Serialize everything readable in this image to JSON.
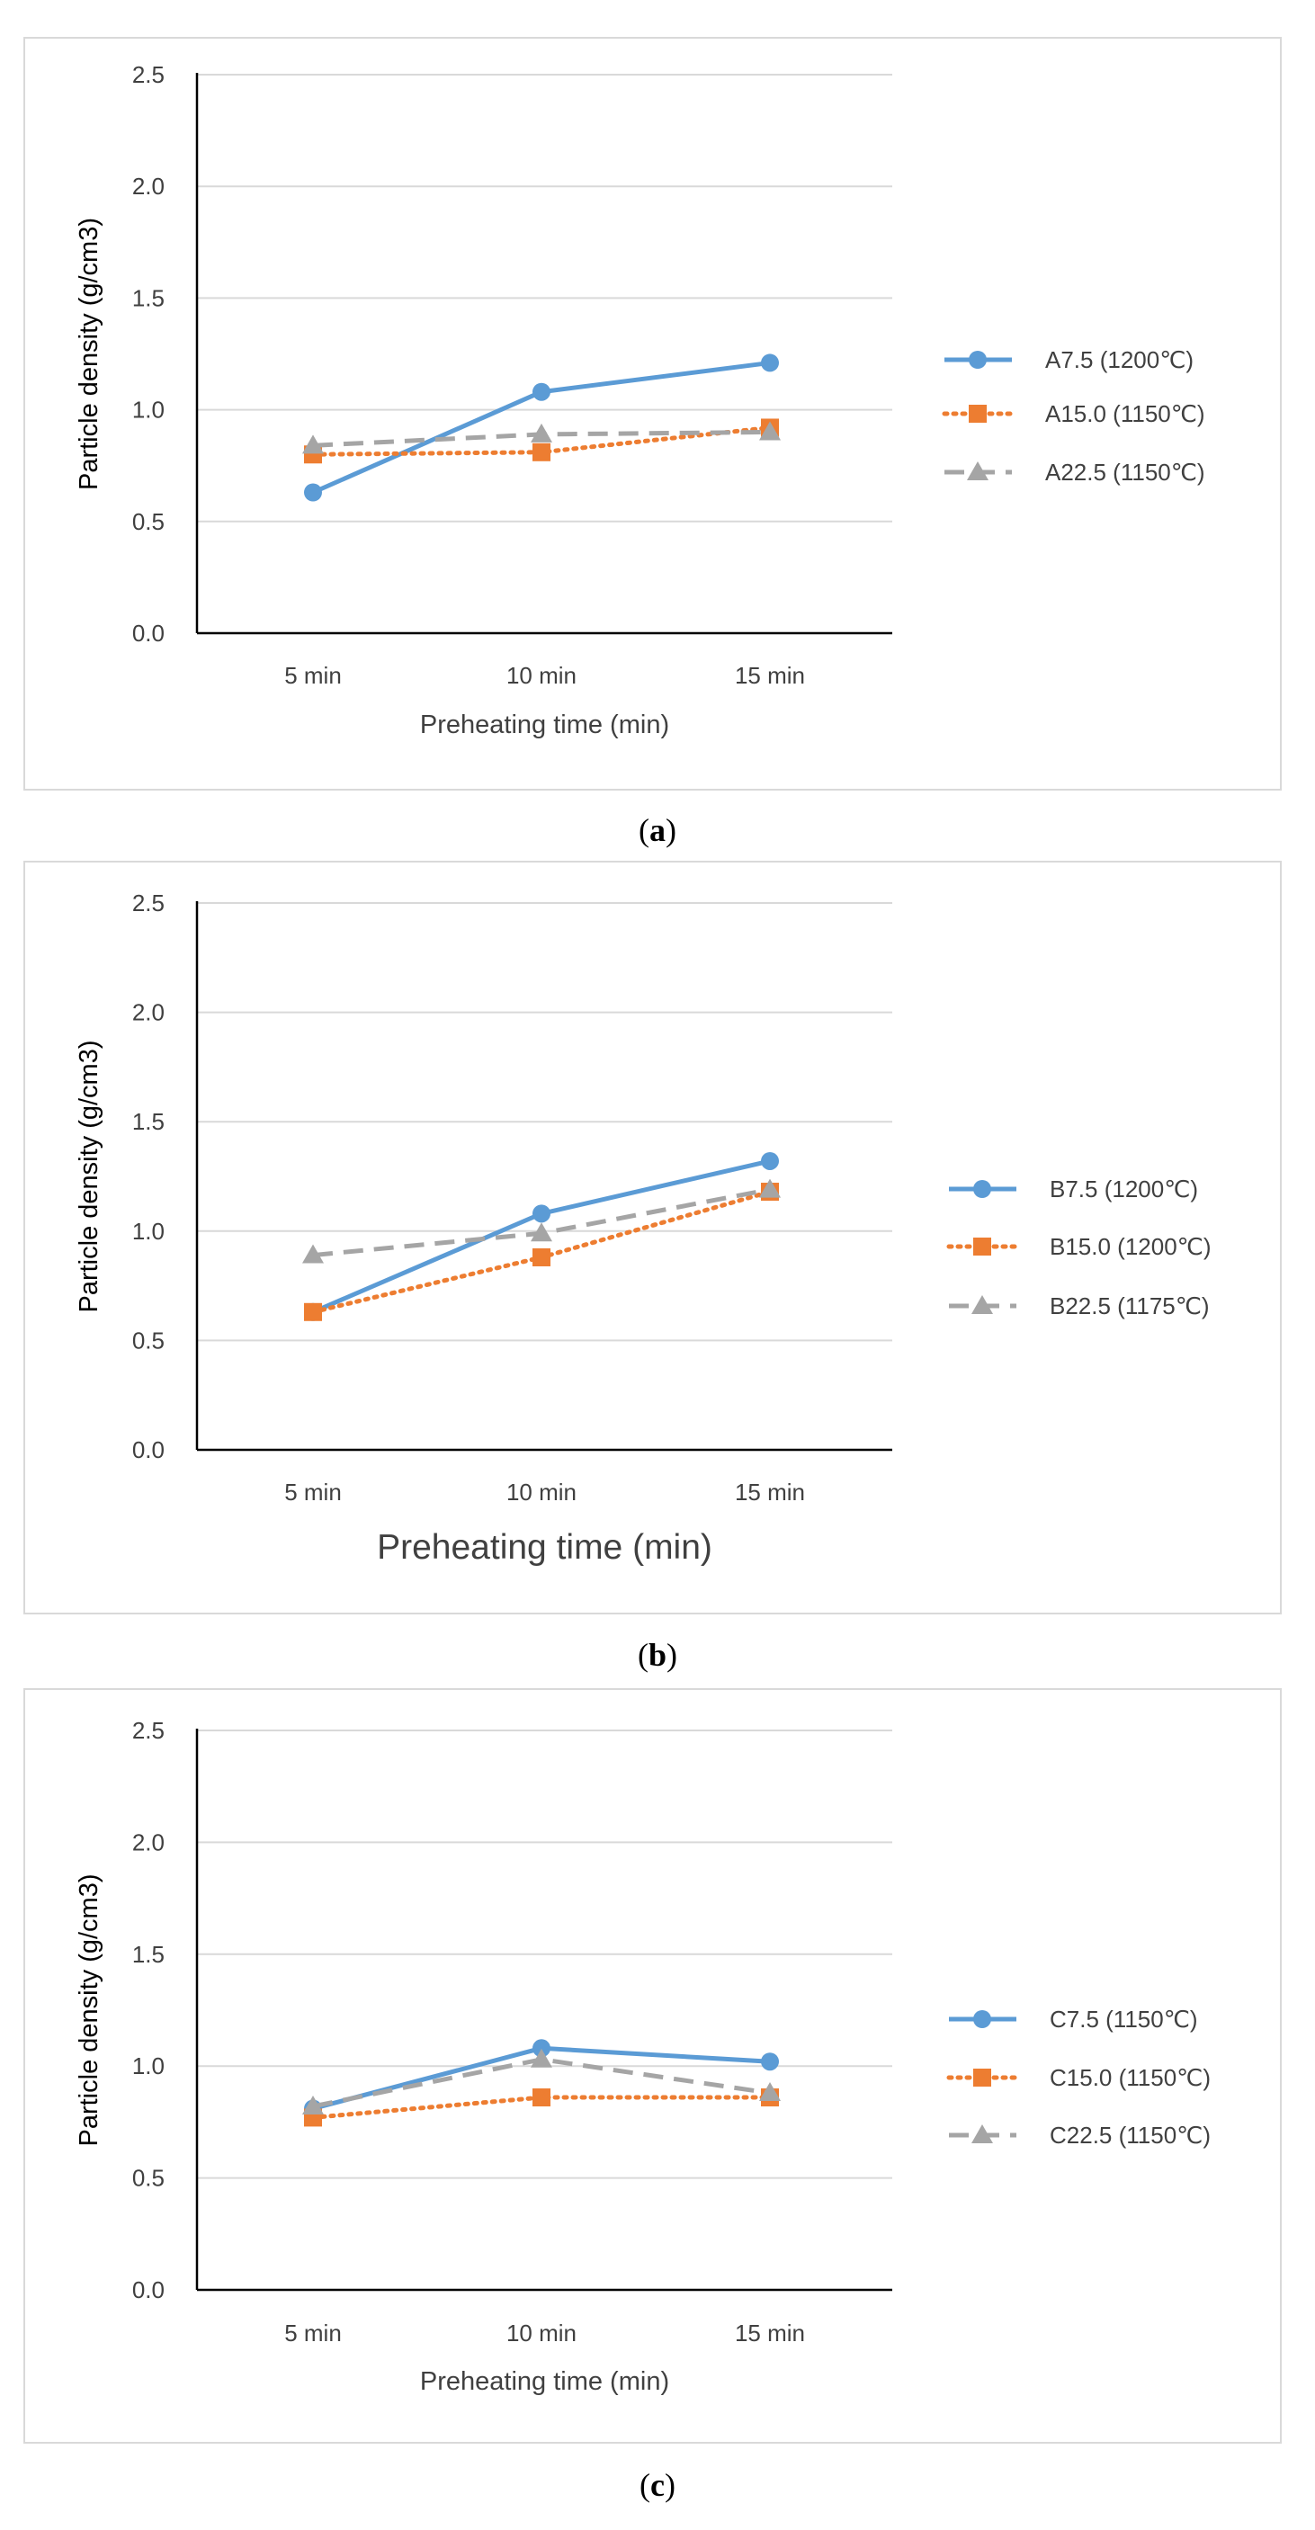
{
  "chart_data": [
    {
      "type": "line",
      "panel": "a",
      "caption": "(a)",
      "caption_letter": "a",
      "categories": [
        "5 min",
        "10 min",
        "15 min"
      ],
      "xlabel": "Preheating time (min)",
      "ylabel": "Particle density (g/cm3)",
      "ylim": [
        0,
        2.5
      ],
      "yticks": [
        "0.0",
        "0.5",
        "1.0",
        "1.5",
        "2.0",
        "2.5"
      ],
      "grid": true,
      "legend_position": "right",
      "series": [
        {
          "name": "A7.5 (1200℃)",
          "values": [
            0.63,
            1.08,
            1.21
          ],
          "color": "#5B9BD5",
          "style": "solid",
          "marker": "circle"
        },
        {
          "name": "A15.0 (1150℃)",
          "values": [
            0.8,
            0.81,
            0.92
          ],
          "color": "#ED7D31",
          "style": "dotted",
          "marker": "square"
        },
        {
          "name": "A22.5 (1150℃)",
          "values": [
            0.84,
            0.89,
            0.9
          ],
          "color": "#A5A5A5",
          "style": "dashed",
          "marker": "triangle"
        }
      ]
    },
    {
      "type": "line",
      "panel": "b",
      "caption": "(b)",
      "caption_letter": "b",
      "categories": [
        "5 min",
        "10 min",
        "15 min"
      ],
      "xlabel": "Preheating time (min)",
      "ylabel": "Particle density (g/cm3)",
      "ylim": [
        0,
        2.5
      ],
      "yticks": [
        "0.0",
        "0.5",
        "1.0",
        "1.5",
        "2.0",
        "2.5"
      ],
      "grid": true,
      "legend_position": "right",
      "series": [
        {
          "name": "B7.5 (1200℃)",
          "values": [
            0.63,
            1.08,
            1.32
          ],
          "color": "#5B9BD5",
          "style": "solid",
          "marker": "circle"
        },
        {
          "name": "B15.0 (1200℃)",
          "values": [
            0.63,
            0.88,
            1.18
          ],
          "color": "#ED7D31",
          "style": "dotted",
          "marker": "square"
        },
        {
          "name": "B22.5 (1175℃)",
          "values": [
            0.89,
            0.99,
            1.19
          ],
          "color": "#A5A5A5",
          "style": "dashed",
          "marker": "triangle"
        }
      ]
    },
    {
      "type": "line",
      "panel": "c",
      "caption": "(c)",
      "caption_letter": "c",
      "categories": [
        "5 min",
        "10 min",
        "15 min"
      ],
      "xlabel": "Preheating time (min)",
      "ylabel": "Particle density (g/cm3)",
      "ylim": [
        0,
        2.5
      ],
      "yticks": [
        "0.0",
        "0.5",
        "1.0",
        "1.5",
        "2.0",
        "2.5"
      ],
      "grid": true,
      "legend_position": "right",
      "series": [
        {
          "name": "C7.5 (1150℃)",
          "values": [
            0.81,
            1.08,
            1.02
          ],
          "color": "#5B9BD5",
          "style": "solid",
          "marker": "circle"
        },
        {
          "name": "C15.0 (1150℃)",
          "values": [
            0.77,
            0.86,
            0.86
          ],
          "color": "#ED7D31",
          "style": "dotted",
          "marker": "square"
        },
        {
          "name": "C22.5 (1150℃)",
          "values": [
            0.82,
            1.03,
            0.88
          ],
          "color": "#A5A5A5",
          "style": "dashed",
          "marker": "triangle"
        }
      ]
    }
  ]
}
